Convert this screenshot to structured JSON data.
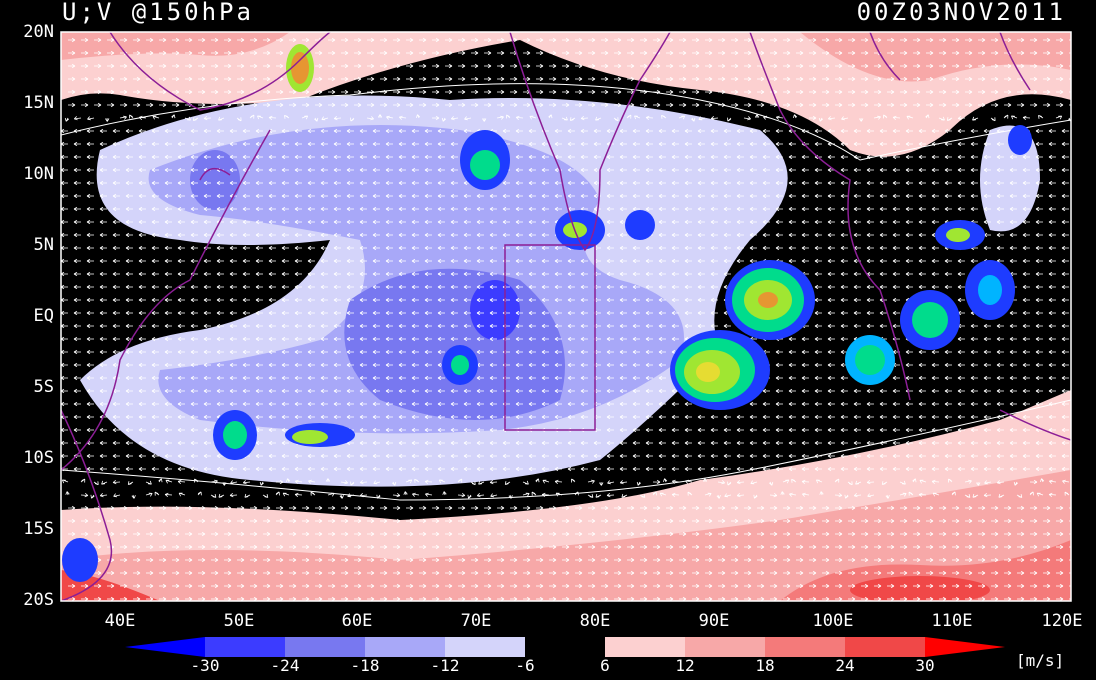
{
  "header": {
    "variable": "U;V @150hPa",
    "datetime": "00Z03NOV2011"
  },
  "axes": {
    "latitudes": [
      "20N",
      "15N",
      "10N",
      "5N",
      "EQ",
      "5S",
      "10S",
      "15S",
      "20S"
    ],
    "longitudes": [
      "40E",
      "50E",
      "60E",
      "70E",
      "80E",
      "90E",
      "100E",
      "110E",
      "120E"
    ]
  },
  "colorbar": {
    "levels": [
      "-30",
      "-24",
      "-18",
      "-12",
      "-6",
      "6",
      "12",
      "18",
      "24",
      "30"
    ],
    "colors": [
      "#0000ff",
      "#3c3cff",
      "#7878f0",
      "#a8a8f8",
      "#d4d4fa",
      "#000000",
      "#fcd0d0",
      "#f7a8a8",
      "#f47a7a",
      "#f04848",
      "#ff0000"
    ],
    "units": "[m/s]"
  },
  "legend_colors": {
    "convection": [
      "#1e3cff",
      "#00b4ff",
      "#00dc8c",
      "#a0e632",
      "#e6dc32",
      "#e69632"
    ],
    "coastline": "#8c1e96"
  }
}
